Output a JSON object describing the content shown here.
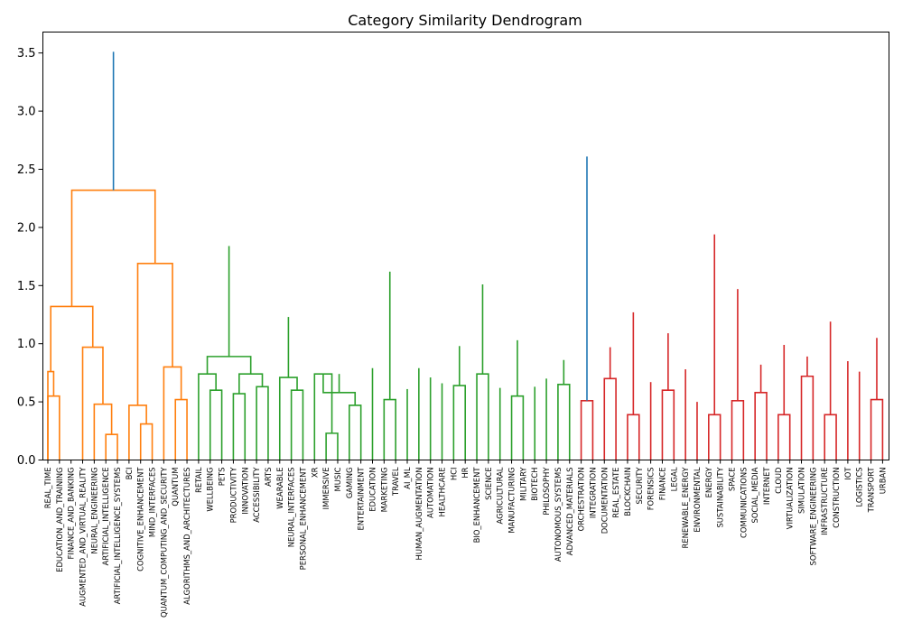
{
  "chart_data": {
    "type": "dendrogram",
    "title": "Category Similarity Dendrogram",
    "xlabel": "",
    "ylabel": "",
    "ylim": [
      0,
      3.68
    ],
    "yticks": [
      "0.0",
      "0.5",
      "1.0",
      "1.5",
      "2.0",
      "2.5",
      "3.0",
      "3.5"
    ],
    "grid": false,
    "leaves": [
      "REAL_TIME",
      "EDUCATION_AND_TRAINING",
      "FINANCE_AND_BANKING",
      "AUGMENTED_AND_VIRTUAL_REALITY",
      "NEURAL_ENGINEERING",
      "ARTIFICIAL_INTELLIGENCE",
      "ARTIFICIAL_INTELLIGENCE_SYSTEMS",
      "BCI",
      "COGNITIVE_ENHANCEMENT",
      "MIND_INTERFACES",
      "QUANTUM_COMPUTING_AND_SECURITY",
      "QUANTUM",
      "ALGORITHMS_AND_ARCHITECTURES",
      "RETAIL",
      "WELLBEING",
      "PETS",
      "PRODUCTIVITY",
      "INNOVATION",
      "ACCESSIBILITY",
      "ARTS",
      "WEARABLE",
      "NEURAL_INTERFACES",
      "PERSONAL_ENHANCEMENT",
      "XR",
      "IMMERSIVE",
      "MUSIC",
      "GAMING",
      "ENTERTAINMENT",
      "EDUCATION",
      "MARKETING",
      "TRAVEL",
      "AI_ML",
      "HUMAN_AUGMENTATION",
      "AUTOMATION",
      "HEALTHCARE",
      "HCI",
      "HR",
      "BIO_ENHANCEMENT",
      "SCIENCE",
      "AGRICULTURAL",
      "MANUFACTURING",
      "MILITARY",
      "BIOTECH",
      "PHILOSOPHY",
      "AUTONOMOUS_SYSTEMS",
      "ADVANCED_MATERIALS",
      "ORCHESTRATION",
      "INTEGRATION",
      "DOCUMENTATION",
      "REAL_ESTATE",
      "BLOCKCHAIN",
      "SECURITY",
      "FORENSICS",
      "FINANCE",
      "LEGAL",
      "RENEWABLE_ENERGY",
      "ENVIRONMENTAL",
      "ENERGY",
      "SUSTAINABILITY",
      "SPACE",
      "COMMUNICATIONS",
      "SOCIAL_MEDIA",
      "INTERNET",
      "CLOUD",
      "VIRTUALIZATION",
      "SIMULATION",
      "SOFTWARE_ENGINEERING",
      "INFRASTRUCTURE",
      "CONSTRUCTION",
      "IOT",
      "LOGISTICS",
      "TRANSPORT",
      "URBAN"
    ],
    "cluster_colors": {
      "orange": "#ff7f0e",
      "green": "#2ca02c",
      "red": "#d62728",
      "blue": "#1f77b4"
    },
    "merges": [
      {
        "a": 0,
        "b": 1,
        "height": 0.55,
        "color": "orange"
      },
      {
        "a": "REAL_TIME",
        "b": 73,
        "height": 0.76,
        "color": "orange"
      },
      {
        "a": 5,
        "b": 6,
        "height": 0.22,
        "color": "orange"
      },
      {
        "a": 4,
        "b": 75,
        "height": 0.48,
        "color": "orange"
      },
      {
        "a": 3,
        "b": 76,
        "height": 0.97,
        "color": "orange"
      },
      {
        "a": 74,
        "b": 77,
        "height": 1.32,
        "color": "orange"
      },
      {
        "a": 8,
        "b": 9,
        "height": 0.31,
        "color": "orange"
      },
      {
        "a": 7,
        "b": 79,
        "height": 0.47,
        "color": "orange"
      },
      {
        "a": 11,
        "b": 12,
        "height": 0.52,
        "color": "orange"
      },
      {
        "a": 10,
        "b": 81,
        "height": 0.8,
        "color": "orange"
      },
      {
        "a": 80,
        "b": 82,
        "height": 1.69,
        "color": "orange"
      },
      {
        "a": 78,
        "b": 83,
        "height": 2.32,
        "color": "orange"
      },
      {
        "a": 14,
        "b": 15,
        "height": 0.6,
        "color": "green"
      },
      {
        "a": 13,
        "b": 85,
        "height": 0.74,
        "color": "green"
      },
      {
        "a": 16,
        "b": 17,
        "height": 0.57,
        "color": "green"
      },
      {
        "a": 18,
        "b": 19,
        "height": 0.63,
        "color": "green"
      },
      {
        "a": 87,
        "b": 88,
        "height": 0.74,
        "color": "green"
      },
      {
        "a": 86,
        "b": 89,
        "height": 0.89,
        "color": "green"
      },
      {
        "a": 21,
        "b": 22,
        "height": 0.6,
        "color": "green"
      },
      {
        "a": 20,
        "b": 91,
        "height": 0.71,
        "color": "green"
      },
      {
        "a": 24,
        "b": 25,
        "height": 0.23,
        "color": "green"
      },
      {
        "a": 26,
        "b": 27,
        "height": 0.47,
        "color": "green"
      },
      {
        "a": 23,
        "b": 93,
        "height": 0.74,
        "color": "green"
      },
      {
        "a": 95,
        "b": 94,
        "height": 0.58,
        "color": "green"
      },
      {
        "a": 96,
        "b": 97,
        "height": 0.74,
        "color": "green"
      },
      {
        "a": 92,
        "b": 98,
        "height": 1.23,
        "color": "green"
      },
      {
        "a": 29,
        "b": 30,
        "height": 0.52,
        "color": "green"
      },
      {
        "a": 28,
        "b": 100,
        "height": 0.79,
        "color": "green"
      },
      {
        "a": 35,
        "b": 36,
        "height": 0.64,
        "color": "green"
      },
      {
        "a": 34,
        "b": 102,
        "height": 0.66,
        "color": "green"
      },
      {
        "a": 33,
        "b": 103,
        "height": 0.71,
        "color": "green"
      },
      {
        "a": 32,
        "b": 104,
        "height": 0.79,
        "color": "green"
      },
      {
        "a": 31,
        "b": 105,
        "height": 0.61,
        "color": "green"
      },
      {
        "a": 101,
        "b": 106,
        "height": 0.98,
        "color": "green"
      },
      {
        "a": 38,
        "b": 37,
        "height": 0.74,
        "color": "green"
      },
      {
        "a": 40,
        "b": 41,
        "height": 0.55,
        "color": "green"
      },
      {
        "a": 39,
        "b": 109,
        "height": 0.62,
        "color": "green"
      },
      {
        "a": 44,
        "b": 45,
        "height": 0.65,
        "color": "green"
      },
      {
        "a": 43,
        "b": 111,
        "height": 0.7,
        "color": "green"
      },
      {
        "a": 42,
        "b": 112,
        "height": 0.63,
        "color": "green"
      },
      {
        "a": 110,
        "b": 113,
        "height": 0.86,
        "color": "green"
      },
      {
        "a": 108,
        "b": 114,
        "height": 1.03,
        "color": "green"
      },
      {
        "a": 107,
        "b": 115,
        "height": 1.51,
        "color": "green"
      },
      {
        "a": 99,
        "b": 116,
        "height": 1.62,
        "color": "green"
      },
      {
        "a": 90,
        "b": 117,
        "height": 1.84,
        "color": "green"
      },
      {
        "a": 46,
        "b": 47,
        "height": 0.51,
        "color": "red"
      },
      {
        "a": 48,
        "b": 49,
        "height": 0.7,
        "color": "red"
      },
      {
        "a": 119,
        "b": 120,
        "height": 0.97,
        "color": "red"
      },
      {
        "a": 50,
        "b": 51,
        "height": 0.39,
        "color": "red"
      },
      {
        "a": 53,
        "b": 54,
        "height": 0.6,
        "color": "red"
      },
      {
        "a": 52,
        "b": 123,
        "height": 0.67,
        "color": "red"
      },
      {
        "a": 122,
        "b": 124,
        "height": 1.09,
        "color": "red"
      },
      {
        "a": 121,
        "b": 125,
        "height": 1.27,
        "color": "red"
      },
      {
        "a": 57,
        "b": 58,
        "height": 0.39,
        "color": "red"
      },
      {
        "a": 56,
        "b": 127,
        "height": 0.5,
        "color": "red"
      },
      {
        "a": 55,
        "b": 128,
        "height": 0.78,
        "color": "red"
      },
      {
        "a": 59,
        "b": 60,
        "height": 0.51,
        "color": "red"
      },
      {
        "a": 61,
        "b": 62,
        "height": 0.58,
        "color": "red"
      },
      {
        "a": 130,
        "b": 131,
        "height": 0.82,
        "color": "red"
      },
      {
        "a": 63,
        "b": 64,
        "height": 0.39,
        "color": "red"
      },
      {
        "a": 65,
        "b": 66,
        "height": 0.72,
        "color": "red"
      },
      {
        "a": 133,
        "b": 134,
        "height": 0.89,
        "color": "red"
      },
      {
        "a": 132,
        "b": 135,
        "height": 0.99,
        "color": "red"
      },
      {
        "a": 67,
        "b": 68,
        "height": 0.39,
        "color": "red"
      },
      {
        "a": 71,
        "b": 72,
        "height": 0.52,
        "color": "red"
      },
      {
        "a": 70,
        "b": 138,
        "height": 0.76,
        "color": "red"
      },
      {
        "a": 69,
        "b": 139,
        "height": 0.85,
        "color": "red"
      },
      {
        "a": 137,
        "b": 140,
        "height": 1.05,
        "color": "red"
      },
      {
        "a": 136,
        "b": 141,
        "height": 1.19,
        "color": "red"
      },
      {
        "a": 129,
        "b": 142,
        "height": 1.47,
        "color": "red"
      },
      {
        "a": 126,
        "b": 143,
        "height": 1.94,
        "color": "red"
      },
      {
        "a": 118,
        "b": 144,
        "height": 2.61,
        "color": "blue"
      },
      {
        "a": 84,
        "b": 145,
        "height": 3.51,
        "color": "blue"
      }
    ]
  }
}
